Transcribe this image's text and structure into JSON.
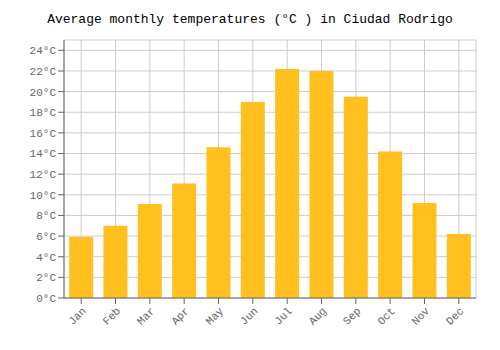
{
  "chart_data": {
    "type": "bar",
    "title": "Average monthly temperatures (°C ) in Ciudad Rodrigo",
    "categories": [
      "Jan",
      "Feb",
      "Mar",
      "Apr",
      "May",
      "Jun",
      "Jul",
      "Aug",
      "Sep",
      "Oct",
      "Nov",
      "Dec"
    ],
    "values": [
      5.9,
      7.0,
      9.1,
      11.1,
      14.6,
      19.0,
      22.2,
      22.0,
      19.5,
      14.2,
      9.2,
      6.2
    ],
    "color": "#FFC020",
    "ylim": [
      0,
      25
    ],
    "yticks": [
      {
        "value": 0,
        "label": "0°C"
      },
      {
        "value": 2,
        "label": "2°C"
      },
      {
        "value": 4,
        "label": "4°C"
      },
      {
        "value": 6,
        "label": "6°C"
      },
      {
        "value": 8,
        "label": "8°C"
      },
      {
        "value": 10,
        "label": "10°C"
      },
      {
        "value": 12,
        "label": "12°C"
      },
      {
        "value": 14,
        "label": "14°C"
      },
      {
        "value": 16,
        "label": "16°C"
      },
      {
        "value": 18,
        "label": "18°C"
      },
      {
        "value": 20,
        "label": "20°C"
      },
      {
        "value": 22,
        "label": "22°C"
      },
      {
        "value": 24,
        "label": "24°C"
      }
    ],
    "grid": true
  }
}
